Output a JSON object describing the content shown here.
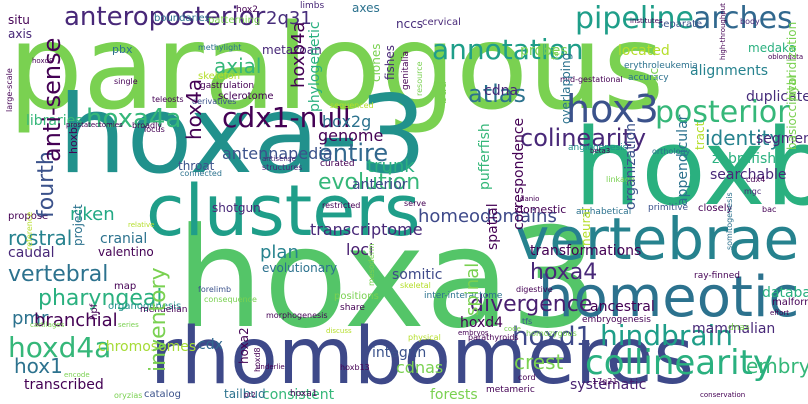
{
  "words": [
    {
      "t": "paralogous",
      "c": "#7ad151"
    },
    {
      "t": "hoxa-3",
      "c": "#21918c"
    },
    {
      "t": "hoxb3",
      "c": "#2ab07f"
    },
    {
      "t": "hoxa3",
      "c": "#54c568"
    },
    {
      "t": "clusters",
      "c": "#1f9e89"
    },
    {
      "t": "rhombomeres",
      "c": "#3e4989"
    },
    {
      "t": "vertebrae",
      "c": "#26828e"
    },
    {
      "t": "homeotic",
      "c": "#2c728e"
    },
    {
      "t": "collinearity",
      "c": "#2ab07f"
    },
    {
      "t": "hindbrain",
      "c": "#1f9e89"
    },
    {
      "t": "hox3",
      "c": "#3b528b"
    },
    {
      "t": "anteroposterior",
      "c": "#482878"
    },
    {
      "t": "annotation",
      "c": "#1f9e89"
    },
    {
      "t": "pipeline",
      "c": "#1f9e89"
    },
    {
      "t": "arches",
      "c": "#31688e"
    },
    {
      "t": "posterior",
      "c": "#35b779"
    },
    {
      "t": "hoxa4a",
      "c": "#35b779"
    },
    {
      "t": "cdx1-null",
      "c": "#440154"
    },
    {
      "t": "colinearity",
      "c": "#482878"
    },
    {
      "t": "hoxd4a",
      "c": "#35b779"
    },
    {
      "t": "hoxd1",
      "c": "#3e4989"
    },
    {
      "t": "atlas",
      "c": "#2c728e"
    },
    {
      "t": "entire",
      "c": "#31688e"
    },
    {
      "t": "trunk",
      "c": "#2ab07f"
    },
    {
      "t": "evolution",
      "c": "#35b779"
    },
    {
      "t": "genome",
      "c": "#440154"
    },
    {
      "t": "hox2g",
      "c": "#2c728e"
    },
    {
      "t": "antennapedia",
      "c": "#3b528b"
    },
    {
      "t": "hoxa4",
      "c": "#482878"
    },
    {
      "t": "divergence",
      "c": "#481f70"
    },
    {
      "t": "vertebral",
      "c": "#2c728e"
    },
    {
      "t": "pharyngeal",
      "c": "#2ab07f"
    },
    {
      "t": "riken",
      "c": "#22a884"
    },
    {
      "t": "axial",
      "c": "#35b779"
    },
    {
      "t": "2q31",
      "c": "#472d7b"
    },
    {
      "t": "identity",
      "c": "#26828e"
    },
    {
      "t": "crest",
      "c": "#7ad151"
    },
    {
      "t": "cdnas",
      "c": "#7ad151"
    },
    {
      "t": "rostral",
      "c": "#26828e"
    },
    {
      "t": "pmr",
      "c": "#2c728e"
    },
    {
      "t": "hox1",
      "c": "#2c728e"
    },
    {
      "t": "homeodomains",
      "c": "#3e4989"
    },
    {
      "t": "transcriptome",
      "c": "#482878"
    },
    {
      "t": "plan",
      "c": "#26828e"
    },
    {
      "t": "loci",
      "c": "#481f70"
    },
    {
      "t": "somitic",
      "c": "#3e4989"
    },
    {
      "t": "anterior",
      "c": "#3e4989"
    },
    {
      "t": "embrys",
      "c": "#35b779"
    },
    {
      "t": "systematic",
      "c": "#481f70"
    },
    {
      "t": "ancestral",
      "c": "#440154"
    },
    {
      "t": "mammalian",
      "c": "#482878"
    },
    {
      "t": "branchial",
      "c": "#440154"
    },
    {
      "t": "chromosomes",
      "c": "#a5db36"
    },
    {
      "t": "cdx",
      "c": "#31688e"
    },
    {
      "t": "integrin",
      "c": "#3b528b"
    },
    {
      "t": "consistent",
      "c": "#35b779"
    },
    {
      "t": "forests",
      "c": "#7ad151"
    },
    {
      "t": "hoxd4",
      "c": "#440154"
    },
    {
      "t": "caudal",
      "c": "#482878"
    },
    {
      "t": "cranial",
      "c": "#2c728e"
    },
    {
      "t": "database",
      "c": "#2ab07f"
    },
    {
      "t": "transformations",
      "c": "#440154"
    },
    {
      "t": "transcribed",
      "c": "#440154"
    },
    {
      "t": "valentino",
      "c": "#440154"
    },
    {
      "t": "evolutionary",
      "c": "#2c728e"
    },
    {
      "t": "shotgun",
      "c": "#482878"
    },
    {
      "t": "cdna",
      "c": "#482878"
    },
    {
      "t": "probes",
      "c": "#7ad151"
    },
    {
      "t": "duplicate",
      "c": "#472d7b"
    },
    {
      "t": "segments",
      "c": "#482878"
    },
    {
      "t": "medaka",
      "c": "#2ab07f"
    },
    {
      "t": "zebrafish",
      "c": "#2ab07f"
    },
    {
      "t": "searchable",
      "c": "#482878"
    },
    {
      "t": "alignments",
      "c": "#26828e"
    },
    {
      "t": "throat",
      "c": "#3b528b"
    },
    {
      "t": "libraries",
      "c": "#35b779"
    },
    {
      "t": "situ",
      "c": "#440154"
    },
    {
      "t": "axis",
      "c": "#482878"
    },
    {
      "t": "axes",
      "c": "#2c728e"
    },
    {
      "t": "nccs",
      "c": "#472d7b"
    },
    {
      "t": "boundaries",
      "c": "#2c728e"
    },
    {
      "t": "patterning",
      "c": "#7ad151"
    },
    {
      "t": "hox2",
      "c": "#440154"
    },
    {
      "t": "limbs",
      "c": "#482878"
    },
    {
      "t": "cervical",
      "c": "#482878"
    },
    {
      "t": "separate",
      "c": "#3b528b"
    },
    {
      "t": "body",
      "c": "#482878"
    },
    {
      "t": "pbx",
      "c": "#2c728e"
    },
    {
      "t": "methylight",
      "c": "#2c728e"
    },
    {
      "t": "metazoan",
      "c": "#482878"
    },
    {
      "t": "skeleton",
      "c": "#b5de2b"
    },
    {
      "t": "gastrulation",
      "c": "#440154"
    },
    {
      "t": "sclerotome",
      "c": "#440154"
    },
    {
      "t": "located",
      "c": "#b5de2b"
    },
    {
      "t": "erythroleukemia",
      "c": "#2c728e"
    },
    {
      "t": "accuracy",
      "c": "#2c728e"
    },
    {
      "t": "angiogenesis",
      "c": "#21918c"
    },
    {
      "t": "beta3",
      "c": "#440154"
    },
    {
      "t": "orthology",
      "c": "#2c728e"
    },
    {
      "t": "linkage",
      "c": "#7ad151"
    },
    {
      "t": "cdx4",
      "c": "#440154"
    },
    {
      "t": "mgc",
      "c": "#482878"
    },
    {
      "t": "primitive",
      "c": "#3b528b"
    },
    {
      "t": "closely",
      "c": "#440154"
    },
    {
      "t": "bac",
      "c": "#440154"
    },
    {
      "t": "domestic",
      "c": "#440154"
    },
    {
      "t": "alphabetical",
      "c": "#2c728e"
    },
    {
      "t": "serve",
      "c": "#440154"
    },
    {
      "t": "restricted",
      "c": "#440154"
    },
    {
      "t": "sequenced",
      "c": "#b5de2b"
    },
    {
      "t": "curated",
      "c": "#440154"
    },
    {
      "t": "structures",
      "c": "#482878"
    },
    {
      "t": "connected",
      "c": "#2c728e"
    },
    {
      "t": "antisense",
      "c": "#482878"
    },
    {
      "t": "locus",
      "c": "#440154"
    },
    {
      "t": "prostatectomies",
      "c": "#440154"
    },
    {
      "t": "teleosts",
      "c": "#440154"
    },
    {
      "t": "derivatives",
      "c": "#3b528b"
    },
    {
      "t": "broadly",
      "c": "#440154"
    },
    {
      "t": "propose",
      "c": "#440154"
    },
    {
      "t": "relative",
      "c": "#b5de2b"
    },
    {
      "t": "skeletal",
      "c": "#b5de2b"
    },
    {
      "t": "inter-interactome",
      "c": "#2c728e"
    },
    {
      "t": "positions",
      "c": "#7ad151"
    },
    {
      "t": "share",
      "c": "#440154"
    },
    {
      "t": "cartilages",
      "c": "#7ad151"
    },
    {
      "t": "map",
      "c": "#440154"
    },
    {
      "t": "forelimb",
      "c": "#3b528b"
    },
    {
      "t": "consequence",
      "c": "#7ad151"
    },
    {
      "t": "organogenesis",
      "c": "#21918c"
    },
    {
      "t": "morphogenesis",
      "c": "#440154"
    },
    {
      "t": "series",
      "c": "#7ad151"
    },
    {
      "t": "encode",
      "c": "#7ad151"
    },
    {
      "t": "oryzias",
      "c": "#7ad151"
    },
    {
      "t": "catalog",
      "c": "#3b528b"
    },
    {
      "t": "tailbud",
      "c": "#2c728e"
    },
    {
      "t": "pt2",
      "c": "#440154"
    },
    {
      "t": "hoxa1",
      "c": "#440154"
    },
    {
      "t": "underlie",
      "c": "#440154"
    },
    {
      "t": "hoxb13",
      "c": "#440154"
    },
    {
      "t": "discuss",
      "c": "#b5de2b"
    },
    {
      "t": "physical",
      "c": "#b5de2b"
    },
    {
      "t": "parathyroids",
      "c": "#440154"
    },
    {
      "t": "digestive",
      "c": "#440154"
    },
    {
      "t": "embryogenesis",
      "c": "#440154"
    },
    {
      "t": "tfs",
      "c": "#3b528b"
    },
    {
      "t": "homozygous",
      "c": "#7ad151"
    },
    {
      "t": "code",
      "c": "#7ad151"
    },
    {
      "t": "metameric",
      "c": "#440154"
    },
    {
      "t": "cord",
      "c": "#440154"
    },
    {
      "t": "17q21",
      "c": "#440154"
    },
    {
      "t": "conservation",
      "c": "#440154"
    },
    {
      "t": "dnas",
      "c": "#7ad151"
    },
    {
      "t": "ray-finned",
      "c": "#440154"
    },
    {
      "t": "malformations",
      "c": "#440154"
    },
    {
      "t": "effort",
      "c": "#440154"
    },
    {
      "t": "oblongata",
      "c": "#440154"
    },
    {
      "t": "institutes",
      "c": "#440154"
    },
    {
      "t": "mid-gestational",
      "c": "#440154"
    },
    {
      "t": "mendelian",
      "c": "#440154"
    },
    {
      "t": "single",
      "c": "#440154"
    },
    {
      "t": "hoxd9",
      "c": "#440154"
    },
    {
      "t": "embryos",
      "c": "#440154"
    },
    {
      "t": "danio",
      "c": "#440154"
    },
    {
      "t": "fourth",
      "c": "#3b528b"
    },
    {
      "t": "anti-sense",
      "c": "#440154"
    },
    {
      "t": "hox4a",
      "c": "#440154"
    },
    {
      "t": "hoxb4a",
      "c": "#440154"
    },
    {
      "t": "inventory",
      "c": "#7ad151"
    },
    {
      "t": "spinal",
      "c": "#7ad151"
    },
    {
      "t": "correspondence",
      "c": "#440154"
    },
    {
      "t": "spatial",
      "c": "#440154"
    },
    {
      "t": "neural",
      "c": "#b5de2b"
    },
    {
      "t": "organization",
      "c": "#3b528b"
    },
    {
      "t": "appendicular",
      "c": "#2c728e"
    },
    {
      "t": "pufferfish",
      "c": "#35b779"
    },
    {
      "t": "phylogenetic",
      "c": "#2ab07f"
    },
    {
      "t": "clones",
      "c": "#7ad151"
    },
    {
      "t": "fishes",
      "c": "#482878"
    },
    {
      "t": "bud",
      "c": "#7ad151"
    },
    {
      "t": "overlapping",
      "c": "#2c728e"
    },
    {
      "t": "project",
      "c": "#2c728e"
    },
    {
      "t": "hoxb",
      "c": "#440154"
    },
    {
      "t": "hpf",
      "c": "#440154"
    },
    {
      "t": "reference",
      "c": "#b5de2b"
    },
    {
      "t": "hoxa2",
      "c": "#440154"
    },
    {
      "t": "hoxd8",
      "c": "#440154"
    },
    {
      "t": "mesoderm",
      "c": "#7ad151"
    },
    {
      "t": "somitogenesis",
      "c": "#2c728e"
    },
    {
      "t": "large-scale",
      "c": "#440154"
    },
    {
      "t": "basioccipital",
      "c": "#7ad151"
    },
    {
      "t": "hybridization",
      "c": "#7ad151"
    },
    {
      "t": "high-throughput",
      "c": "#440154"
    },
    {
      "t": "fail",
      "c": "#7ad151"
    },
    {
      "t": "hoxc",
      "c": "#7ad151"
    },
    {
      "t": "tract",
      "c": "#b5de2b"
    },
    {
      "t": "genitalia",
      "c": "#440154"
    },
    {
      "t": "resource",
      "c": "#7ad151"
    },
    {
      "t": "parry",
      "c": "#b5de2b"
    },
    {
      "t": "latipes",
      "c": "#2c728e"
    }
  ]
}
